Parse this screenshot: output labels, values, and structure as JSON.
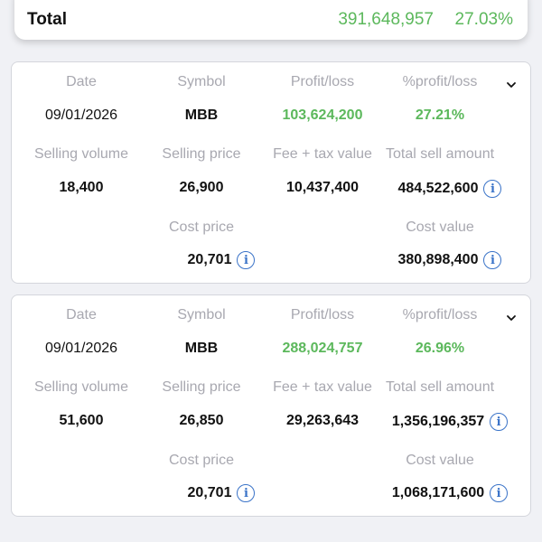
{
  "total": {
    "label": "Total",
    "value": "391,648,957",
    "percent": "27.03%"
  },
  "labels": {
    "date": "Date",
    "symbol": "Symbol",
    "profit_loss": "Profit/loss",
    "pct_profit_loss": "%profit/loss",
    "selling_volume": "Selling volume",
    "selling_price": "Selling price",
    "fee_tax": "Fee + tax value",
    "total_sell": "Total sell amount",
    "cost_price": "Cost price",
    "cost_value": "Cost value"
  },
  "trades": [
    {
      "date": "09/01/2026",
      "symbol": "MBB",
      "profit_loss": "103,624,200",
      "pct_profit_loss": "27.21%",
      "selling_volume": "18,400",
      "selling_price": "26,900",
      "fee_tax": "10,437,400",
      "total_sell": "484,522,600",
      "cost_price": "20,701",
      "cost_value": "380,898,400"
    },
    {
      "date": "09/01/2026",
      "symbol": "MBB",
      "profit_loss": "288,024,757",
      "pct_profit_loss": "26.96%",
      "selling_volume": "51,600",
      "selling_price": "26,850",
      "fee_tax": "29,263,643",
      "total_sell": "1,356,196,357",
      "cost_price": "20,701",
      "cost_value": "1,068,171,600"
    }
  ],
  "colors": {
    "positive": "#5cb85c",
    "info": "#3a73c8",
    "label": "#a8a8b0"
  },
  "icons": {
    "info": "info-icon",
    "expand": "chevron-down-icon"
  }
}
